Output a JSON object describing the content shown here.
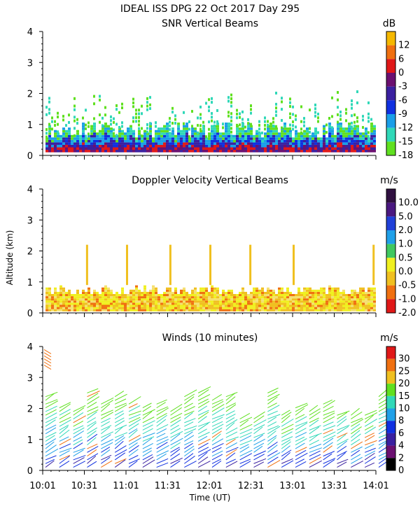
{
  "title": "IDEAL ISS DPG  22 Oct 2017 Day 295",
  "ylabel": "Altitude (km)",
  "xlabel": "Time (UT)",
  "chart_data": [
    {
      "type": "heatmap",
      "title": "SNR Vertical Beams",
      "units": "dB",
      "ylim": [
        0,
        4
      ],
      "yticks": [
        "0",
        "1",
        "2",
        "3",
        "4"
      ],
      "colorbar": {
        "labels": [
          "12",
          "6",
          "0",
          "-3",
          "-6",
          "-9",
          "-12",
          "-15",
          "-18"
        ],
        "colors": [
          "#f5b800",
          "#f07010",
          "#e01818",
          "#6b1070",
          "#3a20a0",
          "#1030e0",
          "#1a9ee8",
          "#30d8b8",
          "#60e020"
        ]
      }
    },
    {
      "type": "heatmap",
      "title": "Doppler Velocity Vertical Beams",
      "units": "m/s",
      "ylim": [
        0,
        4
      ],
      "yticks": [
        "0",
        "1",
        "2",
        "3",
        "4"
      ],
      "colorbar": {
        "labels": [
          "10.0",
          "5.0",
          "2.0",
          "1.0",
          "0.5",
          "0.0",
          "-0.5",
          "-1.0",
          "-2.0"
        ],
        "colors": [
          "#301040",
          "#4a1880",
          "#2040d8",
          "#20a0e8",
          "#40c860",
          "#f0f020",
          "#f0c020",
          "#f07010",
          "#e01818"
        ]
      }
    },
    {
      "type": "scatter",
      "title": "Winds (10 minutes)",
      "units": "m/s",
      "ylim": [
        0,
        4
      ],
      "yticks": [
        "0",
        "1",
        "2",
        "3",
        "4"
      ],
      "colorbar": {
        "labels": [
          "30",
          "25",
          "20",
          "15",
          "10",
          "8",
          "6",
          "4",
          "2",
          "0"
        ],
        "colors": [
          "#e01818",
          "#f07010",
          "#f0c020",
          "#60e020",
          "#30d8b8",
          "#20a0e8",
          "#1030e0",
          "#3a20a0",
          "#6b1070",
          "#000000"
        ]
      }
    }
  ],
  "x_axis": {
    "range_minutes": [
      0,
      240
    ],
    "tick_labels": [
      "10:01",
      "10:31",
      "11:01",
      "11:31",
      "12:01",
      "12:31",
      "13:01",
      "13:31",
      "14:01"
    ]
  }
}
